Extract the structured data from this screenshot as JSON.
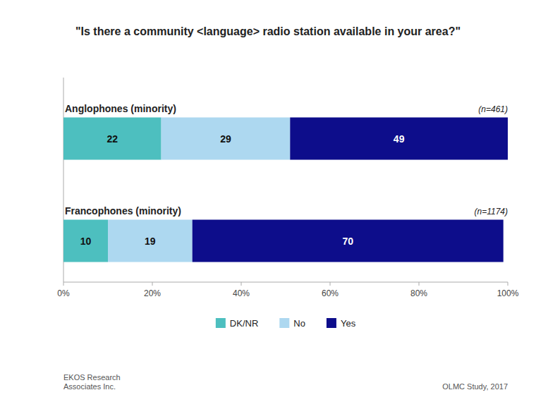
{
  "chart_data": {
    "type": "bar",
    "orientation": "horizontal",
    "stacked": true,
    "data_labels": true,
    "grid": false,
    "legend": "bottom",
    "title": "\"Is there a community <language> radio station available in your area?\"",
    "categories": [
      "Anglophones (minority)",
      "Francophones (minority)"
    ],
    "annotations": [
      "(n=461)",
      "(n=1174)"
    ],
    "footer": [
      "EKOS Research\nAssociates Inc.",
      "OLMC Study, 2017"
    ],
    "series": [
      {
        "name": "DK/NR",
        "color": "#4DBFBF",
        "values": [
          22,
          10
        ]
      },
      {
        "name": "No",
        "color": "#ADD8F0",
        "values": [
          29,
          19
        ]
      },
      {
        "name": "Yes",
        "color": "#0D0D8B",
        "values": [
          49,
          70
        ]
      }
    ],
    "xlim": [
      0,
      100
    ],
    "xticks": [
      {
        "value": 0,
        "label": "0%"
      },
      {
        "value": 20,
        "label": "20%"
      },
      {
        "value": 40,
        "label": "40%"
      },
      {
        "value": 60,
        "label": "60%"
      },
      {
        "value": 80,
        "label": "80%"
      },
      {
        "value": 100,
        "label": "100%"
      }
    ]
  }
}
